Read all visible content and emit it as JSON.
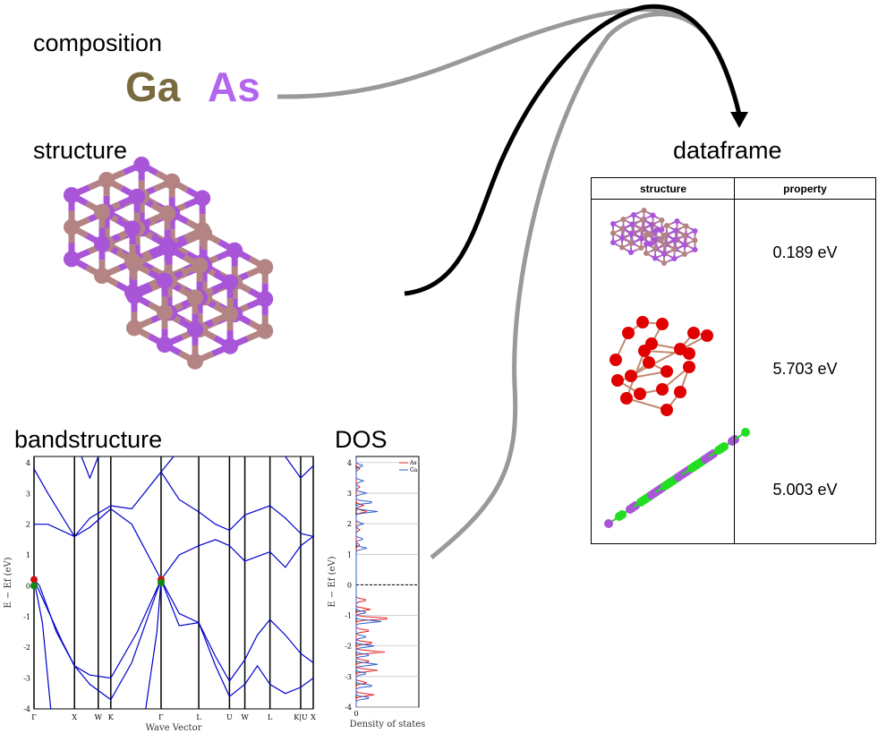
{
  "labels": {
    "composition": "composition",
    "structure": "structure",
    "bandstructure": "bandstructure",
    "dos": "DOS",
    "dataframe": "dataframe"
  },
  "composition": {
    "elements": [
      {
        "symbol": "Ga",
        "color": "#7a6a3f"
      },
      {
        "symbol": "As",
        "color": "#b266ee"
      }
    ]
  },
  "atom_colors": {
    "Ga": "#b48484",
    "As": "#a855d8",
    "O": "#e00000",
    "Cl": "#22dd22"
  },
  "dataframe": {
    "headers": [
      "structure",
      "property"
    ],
    "rows": [
      {
        "structure_icon": "GaAs-crystal-thumbnail",
        "property": "0.189 eV"
      },
      {
        "structure_icon": "oxide-crystal-thumbnail",
        "property": "5.703 eV"
      },
      {
        "structure_icon": "chloride-crystal-thumbnail",
        "property": "5.003 eV"
      }
    ]
  },
  "bandstructure": {
    "y_ticks": [
      "-4",
      "-3",
      "-2",
      "-1",
      "0",
      "1",
      "2",
      "3",
      "4"
    ],
    "ylim": [
      -4,
      4.2
    ],
    "ylabel": "E − Ef (eV)",
    "xlabel": "Wave Vector",
    "kpoints": [
      {
        "label": "Γ",
        "frac": 0.0
      },
      {
        "label": "X",
        "frac": 0.145
      },
      {
        "label": "W",
        "frac": 0.23
      },
      {
        "label": "K",
        "frac": 0.275
      },
      {
        "label": "Γ",
        "frac": 0.455
      },
      {
        "label": "L",
        "frac": 0.59
      },
      {
        "label": "U",
        "frac": 0.7
      },
      {
        "label": "W",
        "frac": 0.755
      },
      {
        "label": "L",
        "frac": 0.845
      },
      {
        "label": "K|U",
        "frac": 0.955
      },
      {
        "label": "X",
        "frac": 1.0
      }
    ],
    "line_color": "#0000cc"
  },
  "dos": {
    "y_ticks": [
      "-4",
      "-3",
      "-2",
      "-1",
      "0",
      "1",
      "2",
      "3",
      "4"
    ],
    "x_ticks": [
      "0"
    ],
    "ylabel": "E − Ef (eV)",
    "xlabel": "Density of states",
    "legend": [
      {
        "name": "As",
        "color": "#e02020"
      },
      {
        "name": "Ga",
        "color": "#3060d0"
      }
    ]
  }
}
